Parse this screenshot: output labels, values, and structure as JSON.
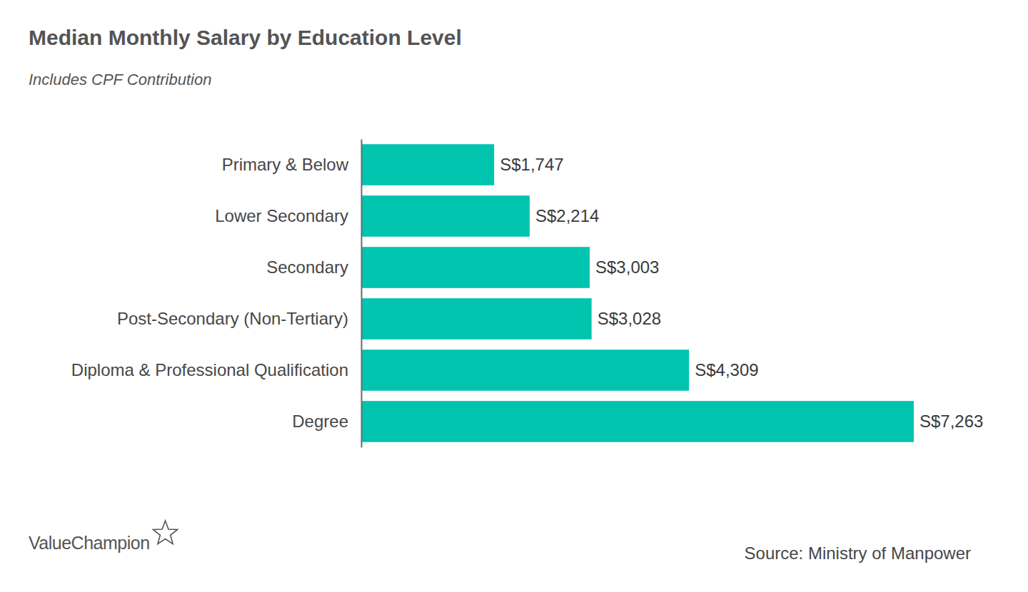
{
  "chart_data": {
    "type": "bar",
    "orientation": "horizontal",
    "title": "Median Monthly Salary by Education Level",
    "subtitle": "Includes CPF Contribution",
    "categories": [
      "Primary & Below",
      "Lower Secondary",
      "Secondary",
      "Post-Secondary (Non-Tertiary)",
      "Diploma & Professional Qualification",
      "Degree"
    ],
    "values": [
      1747,
      2214,
      3003,
      3028,
      4309,
      7263
    ],
    "value_labels": [
      "S$1,747",
      "S$2,214",
      "S$3,003",
      "S$3,028",
      "S$4,309",
      "S$7,263"
    ],
    "color": "#00c4ae",
    "xlim": [
      0,
      7263
    ],
    "data_labels": true,
    "tick_labels": "y",
    "grid": false,
    "brand": "ValueChampion",
    "source": "Source: Ministry of Manpower"
  }
}
